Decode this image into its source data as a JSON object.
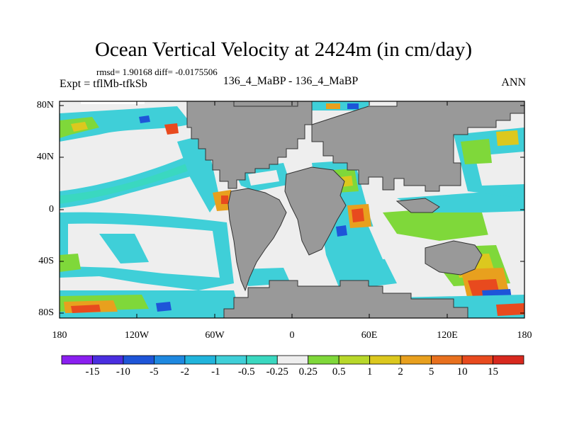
{
  "title": "Ocean Vertical Velocity at 2424m (in cm/day)",
  "stats": "rmsd= 1.90168 diff= -0.0175506",
  "expt": "Expt = tflMb-tfkSb",
  "subtitle": "136_4_MaBP - 136_4_MaBP",
  "season": "ANN",
  "lat_labels": [
    "80N",
    "40N",
    "0",
    "40S",
    "80S"
  ],
  "lon_labels": [
    "180",
    "120W",
    "60W",
    "0",
    "60E",
    "120E",
    "180"
  ],
  "colorbar": {
    "labels": [
      "-15",
      "-10",
      "-5",
      "-2",
      "-1",
      "-0.5",
      "-0.25",
      "0.25",
      "0.5",
      "1",
      "2",
      "5",
      "10",
      "15"
    ],
    "colors": [
      "#8a1ff0",
      "#4a2ee0",
      "#1e55d8",
      "#1e88e0",
      "#21b4dc",
      "#3fcfd8",
      "#3ad8c0",
      "#eeeeee",
      "#7fd83a",
      "#b8d82a",
      "#dcc81e",
      "#e8a01e",
      "#e8701e",
      "#e84a1e",
      "#d8281e"
    ]
  },
  "palette": {
    "land": "#999999",
    "nodata": "#eeeeee",
    "cyan": "#3fcfd8",
    "teal": "#3ad8c0",
    "green": "#7fd83a",
    "yellow": "#dcc81e",
    "orange": "#e8a01e",
    "red": "#e84a1e",
    "blue": "#1e55d8",
    "purple": "#4a2ee0"
  }
}
